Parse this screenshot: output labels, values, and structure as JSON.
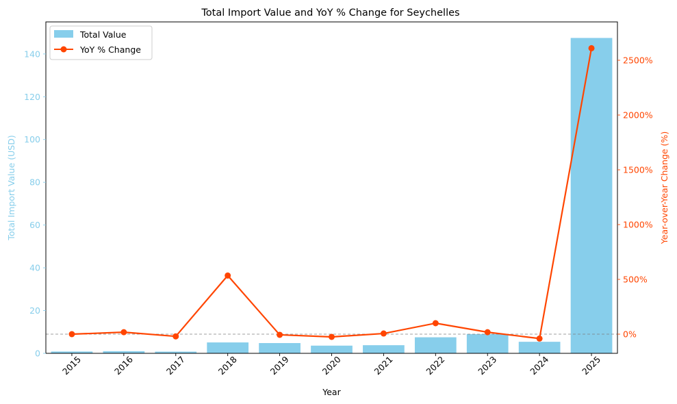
{
  "colors": {
    "bar": "#87CEEB",
    "line": "#FF4500",
    "axis": "#000000",
    "zero_line": "#808080"
  },
  "chart_data": {
    "type": "bar",
    "title": "Total Import Value and YoY % Change for Seychelles",
    "xlabel": "Year",
    "ylabel": "Total Import Value (USD)",
    "y2label": "Year-over-Year Change (%)",
    "categories": [
      "2015",
      "2016",
      "2017",
      "2018",
      "2019",
      "2020",
      "2021",
      "2022",
      "2023",
      "2024",
      "2025"
    ],
    "series": [
      {
        "name": "Total Value",
        "type": "bar",
        "axis": "left",
        "values": [
          0.85,
          1.0,
          0.8,
          5.1,
          4.8,
          3.6,
          3.8,
          7.5,
          9.0,
          5.4,
          147.5
        ]
      },
      {
        "name": "YoY % Change",
        "type": "line",
        "axis": "right",
        "values": [
          0,
          18,
          -20,
          535,
          -6,
          -25,
          6,
          100,
          18,
          -40,
          2610
        ]
      }
    ],
    "ylim": [
      0,
      155
    ],
    "y2lim": [
      -175,
      2850
    ],
    "yticks": [
      0,
      20,
      40,
      60,
      80,
      100,
      120,
      140
    ],
    "y2ticks": [
      0,
      500,
      1000,
      1500,
      2000,
      2500
    ],
    "y2tick_labels": [
      "0%",
      "500%",
      "1000%",
      "1500%",
      "2000%",
      "2500%"
    ],
    "reference_line": 0,
    "grid": false,
    "legend": "top-left"
  }
}
